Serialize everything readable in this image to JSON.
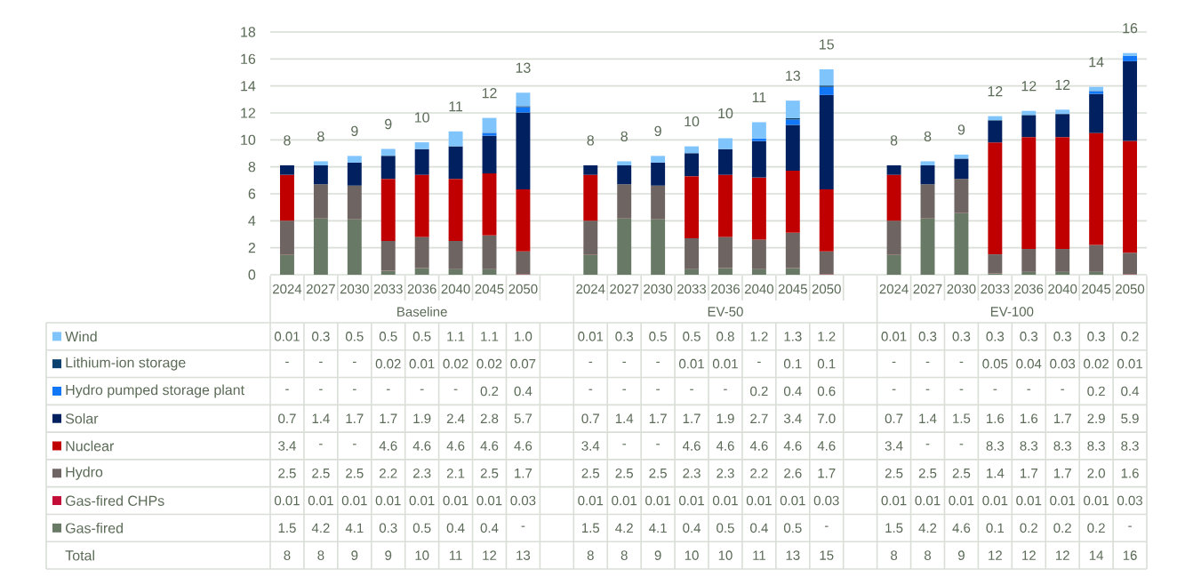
{
  "chart_data": {
    "type": "bar",
    "stacked": true,
    "categories": [
      "2024",
      "2027",
      "2030",
      "2033",
      "2036",
      "2040",
      "2045",
      "2050",
      null,
      "2024",
      "2027",
      "2030",
      "2033",
      "2036",
      "2040",
      "2045",
      "2050",
      null,
      "2024",
      "2027",
      "2030",
      "2033",
      "2036",
      "2040",
      "2045",
      "2050"
    ],
    "series": [
      {
        "name": "Gas-fired",
        "color": "#687a66",
        "values": [
          1.5,
          4.2,
          4.1,
          0.3,
          0.5,
          0.4,
          0.4,
          null,
          null,
          1.5,
          4.2,
          4.1,
          0.4,
          0.5,
          0.4,
          0.5,
          null,
          null,
          1.5,
          4.2,
          4.6,
          0.1,
          0.2,
          0.2,
          0.2,
          null
        ],
        "value_labels": [
          "1.5",
          "4.2",
          "4.1",
          "0.3",
          "0.5",
          "0.4",
          "0.4",
          "-",
          null,
          "1.5",
          "4.2",
          "4.1",
          "0.4",
          "0.5",
          "0.4",
          "0.5",
          "-",
          null,
          "1.5",
          "4.2",
          "4.6",
          "0.1",
          "0.2",
          "0.2",
          "0.2",
          "-"
        ]
      },
      {
        "name": "Gas-fired CHPs",
        "color": "#c30c37",
        "values": [
          0.01,
          0.01,
          0.01,
          0.01,
          0.01,
          0.01,
          0.01,
          0.03,
          null,
          0.01,
          0.01,
          0.01,
          0.01,
          0.01,
          0.01,
          0.01,
          0.03,
          null,
          0.01,
          0.01,
          0.01,
          0.01,
          0.01,
          0.01,
          0.01,
          0.03
        ],
        "value_labels": [
          "0.01",
          "0.01",
          "0.01",
          "0.01",
          "0.01",
          "0.01",
          "0.01",
          "0.03",
          null,
          "0.01",
          "0.01",
          "0.01",
          "0.01",
          "0.01",
          "0.01",
          "0.01",
          "0.03",
          null,
          "0.01",
          "0.01",
          "0.01",
          "0.01",
          "0.01",
          "0.01",
          "0.01",
          "0.03"
        ]
      },
      {
        "name": "Hydro",
        "color": "#6e6462",
        "values": [
          2.5,
          2.5,
          2.5,
          2.2,
          2.3,
          2.1,
          2.5,
          1.7,
          null,
          2.5,
          2.5,
          2.5,
          2.3,
          2.3,
          2.2,
          2.6,
          1.7,
          null,
          2.5,
          2.5,
          2.5,
          1.4,
          1.7,
          1.7,
          2.0,
          1.6
        ],
        "value_labels": [
          "2.5",
          "2.5",
          "2.5",
          "2.2",
          "2.3",
          "2.1",
          "2.5",
          "1.7",
          null,
          "2.5",
          "2.5",
          "2.5",
          "2.3",
          "2.3",
          "2.2",
          "2.6",
          "1.7",
          null,
          "2.5",
          "2.5",
          "2.5",
          "1.4",
          "1.7",
          "1.7",
          "2.0",
          "1.6"
        ]
      },
      {
        "name": "Nuclear",
        "color": "#c00000",
        "values": [
          3.4,
          null,
          null,
          4.6,
          4.6,
          4.6,
          4.6,
          4.6,
          null,
          3.4,
          null,
          null,
          4.6,
          4.6,
          4.6,
          4.6,
          4.6,
          null,
          3.4,
          null,
          null,
          8.3,
          8.3,
          8.3,
          8.3,
          8.3
        ],
        "value_labels": [
          "3.4",
          "-",
          "-",
          "4.6",
          "4.6",
          "4.6",
          "4.6",
          "4.6",
          null,
          "3.4",
          "-",
          "-",
          "4.6",
          "4.6",
          "4.6",
          "4.6",
          "4.6",
          null,
          "3.4",
          "-",
          "-",
          "8.3",
          "8.3",
          "8.3",
          "8.3",
          "8.3"
        ]
      },
      {
        "name": "Solar",
        "color": "#00205f",
        "values": [
          0.7,
          1.4,
          1.7,
          1.7,
          1.9,
          2.4,
          2.8,
          5.7,
          null,
          0.7,
          1.4,
          1.7,
          1.7,
          1.9,
          2.7,
          3.4,
          7.0,
          null,
          0.7,
          1.4,
          1.5,
          1.6,
          1.6,
          1.7,
          2.9,
          5.9
        ],
        "value_labels": [
          "0.7",
          "1.4",
          "1.7",
          "1.7",
          "1.9",
          "2.4",
          "2.8",
          "5.7",
          null,
          "0.7",
          "1.4",
          "1.7",
          "1.7",
          "1.9",
          "2.7",
          "3.4",
          "7.0",
          null,
          "0.7",
          "1.4",
          "1.5",
          "1.6",
          "1.6",
          "1.7",
          "2.9",
          "5.9"
        ]
      },
      {
        "name": "Hydro pumped storage plant",
        "color": "#1177f7",
        "values": [
          null,
          null,
          null,
          null,
          null,
          null,
          0.2,
          0.4,
          null,
          null,
          null,
          null,
          null,
          null,
          0.2,
          0.4,
          0.6,
          null,
          null,
          null,
          null,
          null,
          null,
          null,
          0.2,
          0.4
        ],
        "value_labels": [
          "-",
          "-",
          "-",
          "-",
          "-",
          "-",
          "0.2",
          "0.4",
          null,
          "-",
          "-",
          "-",
          "-",
          "-",
          "0.2",
          "0.4",
          "0.6",
          null,
          "-",
          "-",
          "-",
          "-",
          "-",
          "-",
          "0.2",
          "0.4"
        ]
      },
      {
        "name": "Lithium-ion storage",
        "color": "#0a416e",
        "values": [
          null,
          null,
          null,
          0.02,
          0.01,
          0.02,
          0.02,
          0.07,
          null,
          null,
          null,
          null,
          0.01,
          0.01,
          null,
          0.1,
          0.1,
          null,
          null,
          null,
          null,
          0.05,
          0.04,
          0.03,
          0.02,
          0.01
        ],
        "value_labels": [
          "-",
          "-",
          "-",
          "0.02",
          "0.01",
          "0.02",
          "0.02",
          "0.07",
          null,
          "-",
          "-",
          "-",
          "0.01",
          "0.01",
          "-",
          "0.1",
          "0.1",
          null,
          "-",
          "-",
          "-",
          "0.05",
          "0.04",
          "0.03",
          "0.02",
          "0.01"
        ]
      },
      {
        "name": "Wind",
        "color": "#80c4fc",
        "values": [
          0.01,
          0.3,
          0.5,
          0.5,
          0.5,
          1.1,
          1.1,
          1.0,
          null,
          0.01,
          0.3,
          0.5,
          0.5,
          0.8,
          1.2,
          1.3,
          1.2,
          null,
          0.01,
          0.3,
          0.3,
          0.3,
          0.3,
          0.3,
          0.3,
          0.2
        ],
        "value_labels": [
          "0.01",
          "0.3",
          "0.5",
          "0.5",
          "0.5",
          "1.1",
          "1.1",
          "1.0",
          null,
          "0.01",
          "0.3",
          "0.5",
          "0.5",
          "0.8",
          "1.2",
          "1.3",
          "1.2",
          null,
          "0.01",
          "0.3",
          "0.3",
          "0.3",
          "0.3",
          "0.3",
          "0.3",
          "0.2"
        ]
      }
    ],
    "totals": [
      "8",
      "8",
      "9",
      "9",
      "10",
      "11",
      "12",
      "13",
      null,
      "8",
      "8",
      "9",
      "10",
      "10",
      "11",
      "13",
      "15",
      null,
      "8",
      "8",
      "9",
      "12",
      "12",
      "12",
      "14",
      "16"
    ],
    "ylim": [
      0,
      18
    ],
    "yticks": [
      0,
      2,
      4,
      6,
      8,
      10,
      12,
      14,
      16,
      18
    ],
    "grid": "y",
    "legend": "bottom",
    "annotations": [
      "Baseline",
      "EV-50",
      "EV-100",
      "Total"
    ]
  }
}
